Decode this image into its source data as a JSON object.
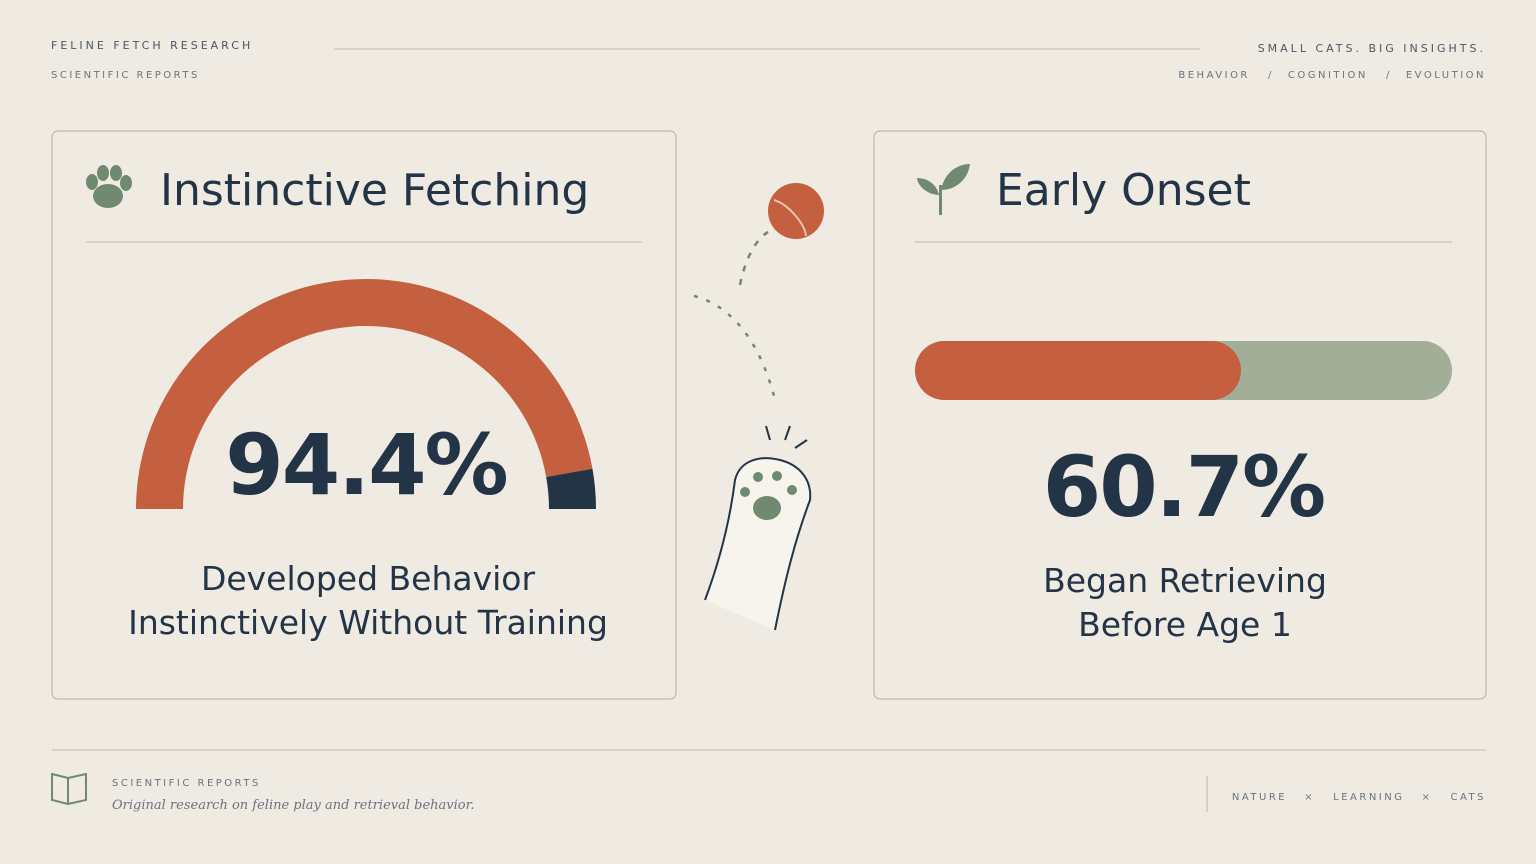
{
  "header": {
    "title": "FELINE FETCH RESEARCH",
    "subtitle": "SCIENTIFIC REPORTS",
    "tagline": "SMALL CATS. BIG INSIGHTS.",
    "topics": [
      "BEHAVIOR",
      "COGNITION",
      "EVOLUTION"
    ],
    "separator": "/"
  },
  "cards": [
    {
      "title": "Instinctive Fetching",
      "type": "gauge",
      "value": 94.4,
      "value_label": "94.4%",
      "range": [
        0,
        100
      ],
      "colors": [
        "#c4603f",
        "#243447"
      ],
      "caption": [
        "Developed Behavior",
        "Instinctively Without Training"
      ]
    },
    {
      "title": "Early Onset",
      "type": "bar",
      "value": 60.7,
      "value_label": "60.7%",
      "range": [
        0,
        100
      ],
      "colors": [
        "#c4603f",
        "#a3ae98"
      ],
      "caption": [
        "Began Retrieving",
        "Before Age 1"
      ]
    }
  ],
  "footer": {
    "title": "SCIENTIFIC REPORTS",
    "note": "Original research on feline play and retrieval behavior.",
    "tags": [
      "NATURE",
      "LEARNING",
      "CATS"
    ],
    "separator": "×"
  }
}
